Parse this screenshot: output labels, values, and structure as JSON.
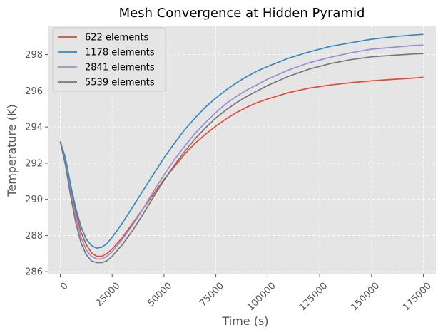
{
  "chart_data": {
    "type": "line",
    "title": "Mesh Convergence at Hidden Pyramid",
    "xlabel": "Time (s)",
    "ylabel": "Temperature (K)",
    "xlim": [
      -6000,
      181000
    ],
    "ylim": [
      285.85,
      299.6
    ],
    "xticks": [
      0,
      25000,
      50000,
      75000,
      100000,
      125000,
      150000,
      175000
    ],
    "xtick_labels": [
      "0",
      "25000",
      "50000",
      "75000",
      "100000",
      "125000",
      "150000",
      "175000"
    ],
    "yticks": [
      286,
      288,
      290,
      292,
      294,
      296,
      298
    ],
    "ytick_labels": [
      "286",
      "288",
      "290",
      "292",
      "294",
      "296",
      "298"
    ],
    "grid": true,
    "legend_position": "top-left",
    "background_color": "#e5e5e5",
    "series": [
      {
        "name": "622 elements",
        "color": "#e24a33",
        "x": [
          0,
          2500,
          5000,
          7500,
          10000,
          12500,
          15000,
          17500,
          20000,
          22500,
          25000,
          30000,
          35000,
          40000,
          45000,
          50000,
          55000,
          60000,
          65000,
          70000,
          75000,
          80000,
          85000,
          90000,
          95000,
          100000,
          110000,
          120000,
          130000,
          140000,
          150000,
          160000,
          170000,
          175000
        ],
        "values": [
          293.2,
          292.2,
          290.6,
          289.3,
          288.2,
          287.5,
          287.05,
          286.85,
          286.85,
          287.0,
          287.25,
          287.9,
          288.7,
          289.5,
          290.3,
          291.1,
          291.8,
          292.5,
          293.1,
          293.6,
          294.05,
          294.45,
          294.8,
          295.1,
          295.35,
          295.55,
          295.9,
          296.15,
          296.32,
          296.45,
          296.55,
          296.63,
          296.7,
          296.75
        ]
      },
      {
        "name": "1178 elements",
        "color": "#348abd",
        "x": [
          0,
          2500,
          5000,
          7500,
          10000,
          12500,
          15000,
          17500,
          20000,
          22500,
          25000,
          30000,
          35000,
          40000,
          45000,
          50000,
          55000,
          60000,
          65000,
          70000,
          75000,
          80000,
          85000,
          90000,
          95000,
          100000,
          110000,
          120000,
          130000,
          140000,
          150000,
          160000,
          170000,
          175000
        ],
        "values": [
          293.2,
          292.3,
          290.8,
          289.5,
          288.5,
          287.8,
          287.45,
          287.3,
          287.35,
          287.55,
          287.9,
          288.7,
          289.6,
          290.5,
          291.4,
          292.3,
          293.1,
          293.85,
          294.5,
          295.1,
          295.6,
          296.05,
          296.45,
          296.8,
          297.1,
          297.35,
          297.8,
          298.15,
          298.45,
          298.65,
          298.85,
          298.98,
          299.08,
          299.12
        ]
      },
      {
        "name": "2841 elements",
        "color": "#988ed5",
        "x": [
          0,
          2500,
          5000,
          7500,
          10000,
          12500,
          15000,
          17500,
          20000,
          22500,
          25000,
          30000,
          35000,
          40000,
          45000,
          50000,
          55000,
          60000,
          65000,
          70000,
          75000,
          80000,
          85000,
          90000,
          95000,
          100000,
          110000,
          120000,
          130000,
          140000,
          150000,
          160000,
          170000,
          175000
        ],
        "values": [
          293.2,
          292.0,
          290.4,
          289.0,
          287.9,
          287.2,
          286.85,
          286.7,
          286.7,
          286.85,
          287.1,
          287.8,
          288.6,
          289.5,
          290.45,
          291.35,
          292.2,
          292.95,
          293.65,
          294.25,
          294.8,
          295.3,
          295.7,
          296.05,
          296.35,
          296.65,
          297.15,
          297.55,
          297.85,
          298.1,
          298.3,
          298.4,
          298.5,
          298.52
        ]
      },
      {
        "name": "5539 elements",
        "color": "#777777",
        "x": [
          0,
          2500,
          5000,
          7500,
          10000,
          12500,
          15000,
          17500,
          20000,
          22500,
          25000,
          30000,
          35000,
          40000,
          45000,
          50000,
          55000,
          60000,
          65000,
          70000,
          75000,
          80000,
          85000,
          90000,
          95000,
          100000,
          110000,
          120000,
          130000,
          140000,
          150000,
          160000,
          170000,
          175000
        ],
        "values": [
          293.2,
          291.9,
          290.2,
          288.7,
          287.6,
          286.95,
          286.6,
          286.5,
          286.5,
          286.6,
          286.85,
          287.5,
          288.3,
          289.2,
          290.15,
          291.05,
          291.9,
          292.65,
          293.35,
          293.95,
          294.5,
          294.95,
          295.35,
          295.7,
          296.0,
          296.3,
          296.8,
          297.2,
          297.5,
          297.72,
          297.88,
          297.96,
          298.03,
          298.05
        ]
      }
    ]
  }
}
